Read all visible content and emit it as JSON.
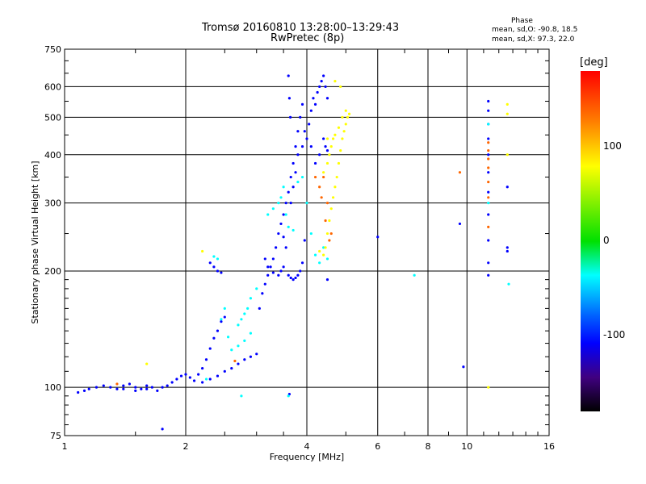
{
  "chart_data": {
    "type": "scatter",
    "title": "Tromsø 20160810 13:28:00–13:29:43",
    "subtitle": "RwPretec (8p)",
    "xlabel": "Frequency [MHz]",
    "ylabel": "Stationary phase Virtual Height [km]",
    "xscale": "log",
    "yscale": "log",
    "xlim": [
      1,
      16
    ],
    "ylim": [
      75,
      750
    ],
    "xticks": [
      1,
      2,
      4,
      6,
      8,
      10,
      16
    ],
    "yticks": [
      75,
      100,
      200,
      300,
      400,
      500,
      600,
      750
    ],
    "grid": true,
    "phase_stats": {
      "heading": "Phase",
      "o_line": "mean, sd,O: -90.8, 18.5",
      "x_line": "mean, sd,X:  97.3, 22.0"
    },
    "colorbar": {
      "unit": "[deg]",
      "ticks": [
        "100",
        "0",
        "-100"
      ],
      "range": [
        -180,
        180
      ],
      "ticks_values": [
        100,
        0,
        -100
      ]
    },
    "series": [
      {
        "phase": -100,
        "points": [
          [
            1.08,
            97
          ],
          [
            1.12,
            98
          ],
          [
            1.15,
            99
          ],
          [
            1.2,
            100
          ],
          [
            1.25,
            101
          ],
          [
            1.3,
            100
          ],
          [
            1.35,
            99
          ],
          [
            1.4,
            101
          ],
          [
            1.45,
            102
          ],
          [
            1.5,
            100
          ],
          [
            1.55,
            99
          ],
          [
            1.6,
            101
          ],
          [
            1.65,
            100
          ],
          [
            1.7,
            98
          ],
          [
            1.75,
            100
          ],
          [
            1.8,
            101
          ],
          [
            1.85,
            103
          ],
          [
            1.9,
            105
          ],
          [
            1.95,
            107
          ],
          [
            2.0,
            108
          ],
          [
            2.05,
            106
          ],
          [
            2.1,
            104
          ],
          [
            2.15,
            108
          ],
          [
            2.2,
            112
          ],
          [
            2.25,
            118
          ],
          [
            2.3,
            126
          ],
          [
            2.35,
            134
          ],
          [
            2.4,
            140
          ],
          [
            2.45,
            148
          ],
          [
            2.5,
            152
          ],
          [
            2.2,
            103
          ],
          [
            2.3,
            105
          ],
          [
            2.4,
            107
          ],
          [
            2.5,
            110
          ],
          [
            2.6,
            112
          ],
          [
            2.7,
            115
          ],
          [
            2.8,
            118
          ],
          [
            2.9,
            120
          ],
          [
            3.0,
            122
          ],
          [
            3.05,
            160
          ],
          [
            3.1,
            175
          ],
          [
            3.15,
            185
          ],
          [
            3.2,
            195
          ],
          [
            3.25,
            205
          ],
          [
            3.3,
            215
          ],
          [
            3.35,
            230
          ],
          [
            3.4,
            250
          ],
          [
            3.45,
            265
          ],
          [
            3.5,
            280
          ],
          [
            3.55,
            300
          ],
          [
            3.6,
            320
          ],
          [
            3.65,
            350
          ],
          [
            3.7,
            380
          ],
          [
            3.75,
            420
          ],
          [
            3.8,
            460
          ],
          [
            3.85,
            500
          ],
          [
            3.9,
            540
          ],
          [
            3.95,
            460
          ],
          [
            4.0,
            440
          ],
          [
            4.05,
            480
          ],
          [
            4.1,
            520
          ],
          [
            4.15,
            560
          ],
          [
            4.2,
            540
          ],
          [
            4.25,
            580
          ],
          [
            4.3,
            600
          ],
          [
            4.35,
            620
          ],
          [
            4.4,
            640
          ],
          [
            4.45,
            600
          ],
          [
            4.5,
            560
          ],
          [
            4.4,
            440
          ],
          [
            4.45,
            420
          ],
          [
            4.5,
            410
          ],
          [
            4.3,
            400
          ],
          [
            4.2,
            380
          ],
          [
            4.1,
            420
          ],
          [
            3.9,
            420
          ],
          [
            3.8,
            400
          ],
          [
            3.75,
            360
          ],
          [
            3.7,
            330
          ],
          [
            3.65,
            300
          ],
          [
            3.6,
            640
          ],
          [
            3.62,
            560
          ],
          [
            3.64,
            500
          ],
          [
            3.5,
            205
          ],
          [
            3.45,
            200
          ],
          [
            3.4,
            195
          ],
          [
            3.3,
            198
          ],
          [
            3.2,
            205
          ],
          [
            3.15,
            215
          ],
          [
            3.6,
            195
          ],
          [
            3.65,
            192
          ],
          [
            3.7,
            190
          ],
          [
            3.75,
            192
          ],
          [
            3.8,
            195
          ],
          [
            3.85,
            200
          ],
          [
            3.9,
            210
          ],
          [
            3.95,
            240
          ],
          [
            3.55,
            230
          ],
          [
            3.5,
            245
          ],
          [
            2.35,
            205
          ],
          [
            2.4,
            200
          ],
          [
            2.45,
            198
          ],
          [
            2.3,
            210
          ],
          [
            1.4,
            99
          ],
          [
            1.5,
            98
          ],
          [
            1.6,
            99
          ],
          [
            1.75,
            78
          ],
          [
            3.62,
            96
          ],
          [
            4.5,
            190
          ],
          [
            6.0,
            245
          ],
          [
            9.6,
            265
          ],
          [
            11.3,
            550
          ],
          [
            11.3,
            520
          ],
          [
            11.3,
            480
          ],
          [
            11.3,
            440
          ],
          [
            11.3,
            400
          ],
          [
            11.3,
            360
          ],
          [
            11.3,
            320
          ],
          [
            11.3,
            280
          ],
          [
            11.3,
            240
          ],
          [
            11.3,
            210
          ],
          [
            11.3,
            195
          ],
          [
            12.6,
            230
          ],
          [
            12.6,
            225
          ],
          [
            12.6,
            330
          ],
          [
            9.8,
            113
          ]
        ]
      },
      {
        "phase": -20,
        "points": [
          [
            2.6,
            125
          ],
          [
            2.7,
            128
          ],
          [
            2.8,
            132
          ],
          [
            2.9,
            138
          ],
          [
            2.7,
            145
          ],
          [
            2.75,
            150
          ],
          [
            2.8,
            155
          ],
          [
            2.85,
            160
          ],
          [
            2.9,
            170
          ],
          [
            3.0,
            180
          ],
          [
            3.2,
            280
          ],
          [
            3.3,
            290
          ],
          [
            3.4,
            300
          ],
          [
            3.45,
            310
          ],
          [
            3.5,
            330
          ],
          [
            3.55,
            280
          ],
          [
            3.6,
            260
          ],
          [
            3.7,
            255
          ],
          [
            3.8,
            340
          ],
          [
            3.9,
            350
          ],
          [
            4.0,
            300
          ],
          [
            4.1,
            250
          ],
          [
            4.2,
            220
          ],
          [
            4.3,
            210
          ],
          [
            4.4,
            230
          ],
          [
            4.5,
            215
          ],
          [
            2.75,
            95
          ],
          [
            3.6,
            95
          ],
          [
            7.4,
            195
          ],
          [
            12.7,
            185
          ],
          [
            2.4,
            215
          ],
          [
            2.35,
            218
          ],
          [
            2.25,
            105
          ],
          [
            2.45,
            150
          ],
          [
            2.5,
            160
          ],
          [
            2.55,
            135
          ],
          [
            11.3,
            480
          ],
          [
            11.3,
            300
          ]
        ]
      },
      {
        "phase": 80,
        "points": [
          [
            4.4,
            220
          ],
          [
            4.45,
            230
          ],
          [
            4.5,
            250
          ],
          [
            4.55,
            270
          ],
          [
            4.6,
            290
          ],
          [
            4.65,
            310
          ],
          [
            4.7,
            330
          ],
          [
            4.75,
            350
          ],
          [
            4.8,
            380
          ],
          [
            4.85,
            410
          ],
          [
            4.9,
            440
          ],
          [
            4.95,
            460
          ],
          [
            5.0,
            480
          ],
          [
            5.05,
            500
          ],
          [
            5.1,
            510
          ],
          [
            4.6,
            420
          ],
          [
            4.65,
            440
          ],
          [
            4.7,
            450
          ],
          [
            4.8,
            470
          ],
          [
            4.9,
            500
          ],
          [
            5.0,
            520
          ],
          [
            4.4,
            360
          ],
          [
            4.5,
            380
          ],
          [
            4.55,
            400
          ],
          [
            4.7,
            620
          ],
          [
            4.85,
            600
          ],
          [
            1.6,
            115
          ],
          [
            2.2,
            225
          ],
          [
            12.6,
            400
          ],
          [
            12.6,
            510
          ],
          [
            12.6,
            540
          ],
          [
            11.3,
            100
          ],
          [
            4.3,
            225
          ],
          [
            4.5,
            440
          ]
        ]
      },
      {
        "phase": 140,
        "points": [
          [
            1.35,
            102
          ],
          [
            2.65,
            117
          ],
          [
            4.3,
            330
          ],
          [
            4.4,
            350
          ],
          [
            4.5,
            300
          ],
          [
            4.45,
            270
          ],
          [
            4.6,
            250
          ],
          [
            4.55,
            240
          ],
          [
            4.35,
            310
          ],
          [
            9.6,
            360
          ],
          [
            11.3,
            430
          ],
          [
            11.3,
            410
          ],
          [
            11.3,
            390
          ],
          [
            11.3,
            370
          ],
          [
            11.3,
            340
          ],
          [
            11.3,
            310
          ],
          [
            11.3,
            260
          ],
          [
            4.2,
            350
          ]
        ]
      }
    ]
  }
}
